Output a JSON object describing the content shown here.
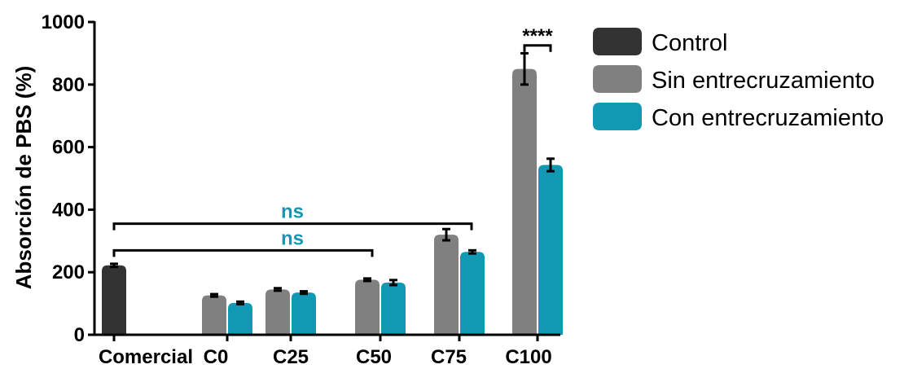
{
  "chart_data": {
    "type": "bar",
    "title": "",
    "xlabel": "",
    "ylabel": "Absorción de PBS (%)",
    "ylim": [
      0,
      1000
    ],
    "yticks": [
      0,
      200,
      400,
      600,
      800,
      1000
    ],
    "grid": false,
    "legend_position": "top-right",
    "categories": [
      "Comercial",
      "C0",
      "C25",
      "C50",
      "C75",
      "C100"
    ],
    "series": [
      {
        "name": "Control",
        "color": "#333333",
        "values": [
          222,
          null,
          null,
          null,
          null,
          null
        ],
        "errors": [
          5,
          null,
          null,
          null,
          null,
          null
        ]
      },
      {
        "name": "Sin entrecruzamiento",
        "color": "#808080",
        "values": [
          null,
          126,
          145,
          176,
          320,
          850
        ],
        "errors": [
          null,
          4,
          4,
          4,
          18,
          50
        ]
      },
      {
        "name": "Con entrecruzamiento",
        "color": "#1199b3",
        "values": [
          null,
          102,
          135,
          167,
          265,
          543
        ],
        "errors": [
          null,
          4,
          4,
          8,
          5,
          20
        ]
      }
    ],
    "annotations": [
      {
        "text": "ns",
        "from": "Comercial",
        "to": "C75",
        "level": 355,
        "color": "#1199b3"
      },
      {
        "text": "ns",
        "from": "Comercial",
        "to": "C50",
        "level": 270,
        "color": "#1199b3"
      },
      {
        "text": "****",
        "from": "C100",
        "to": "C100",
        "level": 925,
        "color": "#000000"
      }
    ]
  }
}
